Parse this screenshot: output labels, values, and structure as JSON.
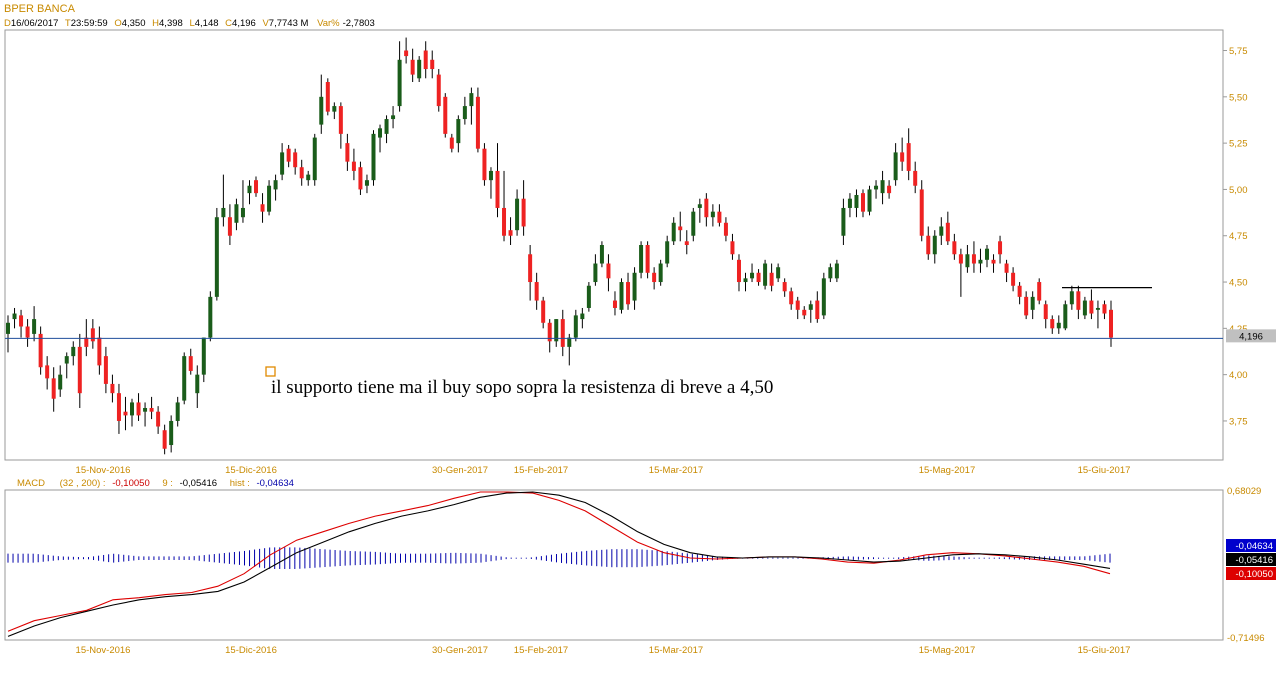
{
  "title": "BPER BANCA",
  "header": {
    "d_key": "D",
    "d_val": "16/06/2017",
    "t_key": "T",
    "t_val": "23:59:59",
    "o_key": "O",
    "o_val": "4,350",
    "h_key": "H",
    "h_val": "4,398",
    "l_key": "L",
    "l_val": "4,148",
    "c_key": "C",
    "c_val": "4,196",
    "v_key": "V",
    "v_val": "7,7743 M",
    "var_key": "Var%",
    "var_val": "-2,7803"
  },
  "annotation": "il supporto tiene ma il buy sopo sopra la resistenza di breve a 4,50",
  "price_axis_ticks": [
    "5,75",
    "5,50",
    "5,25",
    "5,00",
    "4,75",
    "4,50",
    "4,25",
    "4,00",
    "3,75"
  ],
  "last_price_label": "4,196",
  "support_level": 4.196,
  "resistance_level": 4.47,
  "macd_legend": {
    "name": "MACD",
    "params": "(32 , 200) :",
    "macd_val": "-0,10050",
    "signal_label": "9 :",
    "signal_val": "-0,05416",
    "hist_label": "hist :",
    "hist_val": "-0,04634"
  },
  "macd_axis": {
    "top": "0,68029",
    "bottom": "-0,71496"
  },
  "macd_badges": [
    {
      "text": "-0,04634",
      "bg": "#0000cc",
      "fg": "#ffffff"
    },
    {
      "text": "-0,05416",
      "bg": "#000000",
      "fg": "#ffffff"
    },
    {
      "text": "-0,10050",
      "bg": "#dd0000",
      "fg": "#ffffff"
    }
  ],
  "date_labels": [
    "15-Nov-2016",
    "15-Dic-2016",
    "30-Gen-2017",
    "15-Feb-2017",
    "15-Mar-2017",
    "15-Mag-2017",
    "15-Giu-2017"
  ],
  "colors": {
    "up": "#1a5c1a",
    "down": "#ee2222",
    "macd": "#dd0000",
    "signal": "#000000",
    "hist": "#0000aa",
    "axis_text": "#c88a00",
    "support": "#1f4e9c"
  },
  "chart_data": [
    {
      "type": "candlestick",
      "title": "BPER BANCA",
      "ylim": [
        3.55,
        5.85
      ],
      "candles": [
        [
          4.22,
          4.32,
          4.12,
          4.28
        ],
        [
          4.3,
          4.36,
          4.25,
          4.33
        ],
        [
          4.32,
          4.35,
          4.2,
          4.26
        ],
        [
          4.26,
          4.3,
          4.15,
          4.2
        ],
        [
          4.22,
          4.37,
          4.18,
          4.3
        ],
        [
          4.22,
          4.26,
          4.0,
          4.04
        ],
        [
          4.05,
          4.1,
          3.92,
          3.98
        ],
        [
          3.98,
          4.04,
          3.8,
          3.87
        ],
        [
          3.92,
          4.05,
          3.88,
          4.0
        ],
        [
          4.06,
          4.12,
          3.98,
          4.1
        ],
        [
          4.1,
          4.18,
          4.05,
          4.15
        ],
        [
          4.15,
          4.22,
          3.82,
          3.9
        ],
        [
          4.2,
          4.3,
          4.1,
          4.15
        ],
        [
          4.25,
          4.3,
          4.14,
          4.18
        ],
        [
          4.2,
          4.26,
          4.0,
          4.05
        ],
        [
          4.1,
          4.15,
          3.9,
          3.95
        ],
        [
          3.95,
          4.0,
          3.85,
          3.9
        ],
        [
          3.9,
          3.95,
          3.68,
          3.75
        ],
        [
          3.8,
          3.88,
          3.7,
          3.78
        ],
        [
          3.78,
          3.87,
          3.72,
          3.85
        ],
        [
          3.85,
          3.9,
          3.75,
          3.78
        ],
        [
          3.8,
          3.85,
          3.72,
          3.82
        ],
        [
          3.82,
          3.88,
          3.76,
          3.8
        ],
        [
          3.8,
          3.83,
          3.68,
          3.72
        ],
        [
          3.7,
          3.73,
          3.57,
          3.6
        ],
        [
          3.62,
          3.78,
          3.58,
          3.75
        ],
        [
          3.75,
          3.88,
          3.72,
          3.85
        ],
        [
          3.86,
          4.12,
          3.84,
          4.1
        ],
        [
          4.1,
          4.14,
          4.0,
          4.02
        ],
        [
          3.9,
          4.05,
          3.82,
          4.0
        ],
        [
          4.0,
          4.2,
          3.96,
          4.2
        ],
        [
          4.2,
          4.45,
          4.18,
          4.42
        ],
        [
          4.42,
          4.9,
          4.4,
          4.85
        ],
        [
          4.85,
          5.08,
          4.8,
          4.9
        ],
        [
          4.85,
          4.92,
          4.7,
          4.75
        ],
        [
          4.82,
          4.95,
          4.78,
          4.92
        ],
        [
          4.85,
          5.05,
          4.82,
          4.9
        ],
        [
          4.98,
          5.05,
          4.92,
          5.02
        ],
        [
          5.05,
          5.07,
          4.96,
          4.98
        ],
        [
          4.92,
          4.98,
          4.82,
          4.88
        ],
        [
          4.88,
          5.05,
          4.86,
          5.02
        ],
        [
          5.0,
          5.08,
          4.94,
          5.05
        ],
        [
          5.08,
          5.25,
          5.05,
          5.2
        ],
        [
          5.22,
          5.24,
          5.12,
          5.15
        ],
        [
          5.2,
          5.22,
          5.08,
          5.12
        ],
        [
          5.12,
          5.16,
          5.02,
          5.06
        ],
        [
          5.05,
          5.1,
          5.02,
          5.08
        ],
        [
          5.05,
          5.3,
          5.02,
          5.28
        ],
        [
          5.35,
          5.62,
          5.3,
          5.5
        ],
        [
          5.58,
          5.6,
          5.4,
          5.42
        ],
        [
          5.42,
          5.47,
          5.38,
          5.45
        ],
        [
          5.45,
          5.47,
          5.22,
          5.3
        ],
        [
          5.25,
          5.3,
          5.1,
          5.15
        ],
        [
          5.15,
          5.22,
          5.05,
          5.1
        ],
        [
          5.12,
          5.15,
          4.97,
          5.0
        ],
        [
          5.02,
          5.08,
          4.98,
          5.05
        ],
        [
          5.05,
          5.32,
          5.02,
          5.3
        ],
        [
          5.28,
          5.35,
          5.2,
          5.33
        ],
        [
          5.3,
          5.4,
          5.25,
          5.38
        ],
        [
          5.38,
          5.45,
          5.33,
          5.4
        ],
        [
          5.45,
          5.8,
          5.42,
          5.7
        ],
        [
          5.75,
          5.82,
          5.68,
          5.72
        ],
        [
          5.7,
          5.76,
          5.58,
          5.62
        ],
        [
          5.6,
          5.72,
          5.58,
          5.7
        ],
        [
          5.75,
          5.8,
          5.6,
          5.65
        ],
        [
          5.7,
          5.75,
          5.6,
          5.65
        ],
        [
          5.62,
          5.65,
          5.42,
          5.45
        ],
        [
          5.5,
          5.52,
          5.28,
          5.3
        ],
        [
          5.28,
          5.3,
          5.2,
          5.22
        ],
        [
          5.25,
          5.4,
          5.2,
          5.38
        ],
        [
          5.38,
          5.5,
          5.35,
          5.45
        ],
        [
          5.45,
          5.55,
          5.35,
          5.52
        ],
        [
          5.5,
          5.55,
          5.2,
          5.22
        ],
        [
          5.22,
          5.25,
          5.02,
          5.05
        ],
        [
          5.05,
          5.12,
          4.95,
          5.1
        ],
        [
          5.1,
          5.25,
          4.85,
          4.9
        ],
        [
          4.9,
          5.1,
          4.72,
          4.75
        ],
        [
          4.78,
          4.85,
          4.7,
          4.75
        ],
        [
          4.78,
          5.0,
          4.75,
          4.95
        ],
        [
          4.95,
          5.05,
          4.75,
          4.8
        ],
        [
          4.65,
          4.7,
          4.4,
          4.5
        ],
        [
          4.5,
          4.55,
          4.35,
          4.4
        ],
        [
          4.4,
          4.42,
          4.25,
          4.28
        ],
        [
          4.28,
          4.3,
          4.12,
          4.18
        ],
        [
          4.18,
          4.3,
          4.15,
          4.3
        ],
        [
          4.3,
          4.35,
          4.1,
          4.15
        ],
        [
          4.15,
          4.22,
          4.05,
          4.2
        ],
        [
          4.2,
          4.35,
          4.18,
          4.32
        ],
        [
          4.3,
          4.36,
          4.25,
          4.33
        ],
        [
          4.36,
          4.5,
          4.34,
          4.48
        ],
        [
          4.5,
          4.65,
          4.48,
          4.6
        ],
        [
          4.6,
          4.72,
          4.58,
          4.7
        ],
        [
          4.6,
          4.65,
          4.45,
          4.52
        ],
        [
          4.4,
          4.45,
          4.32,
          4.36
        ],
        [
          4.35,
          4.52,
          4.33,
          4.5
        ],
        [
          4.5,
          4.55,
          4.35,
          4.38
        ],
        [
          4.4,
          4.58,
          4.35,
          4.55
        ],
        [
          4.55,
          4.72,
          4.52,
          4.7
        ],
        [
          4.7,
          4.72,
          4.52,
          4.55
        ],
        [
          4.55,
          4.58,
          4.46,
          4.5
        ],
        [
          4.5,
          4.62,
          4.48,
          4.6
        ],
        [
          4.6,
          4.75,
          4.58,
          4.72
        ],
        [
          4.72,
          4.85,
          4.7,
          4.82
        ],
        [
          4.8,
          4.88,
          4.72,
          4.78
        ],
        [
          4.72,
          4.78,
          4.65,
          4.7
        ],
        [
          4.75,
          4.9,
          4.72,
          4.88
        ],
        [
          4.9,
          4.95,
          4.82,
          4.92
        ],
        [
          4.95,
          4.98,
          4.8,
          4.85
        ],
        [
          4.85,
          4.92,
          4.8,
          4.88
        ],
        [
          4.88,
          4.92,
          4.8,
          4.82
        ],
        [
          4.82,
          4.85,
          4.72,
          4.75
        ],
        [
          4.72,
          4.76,
          4.62,
          4.65
        ],
        [
          4.62,
          4.65,
          4.45,
          4.5
        ],
        [
          4.5,
          4.55,
          4.45,
          4.52
        ],
        [
          4.52,
          4.6,
          4.5,
          4.55
        ],
        [
          4.55,
          4.57,
          4.48,
          4.5
        ],
        [
          4.48,
          4.62,
          4.46,
          4.6
        ],
        [
          4.55,
          4.6,
          4.45,
          4.48
        ],
        [
          4.52,
          4.6,
          4.5,
          4.58
        ],
        [
          4.5,
          4.52,
          4.42,
          4.45
        ],
        [
          4.45,
          4.47,
          4.35,
          4.38
        ],
        [
          4.4,
          4.42,
          4.3,
          4.35
        ],
        [
          4.35,
          4.37,
          4.3,
          4.32
        ],
        [
          4.35,
          4.4,
          4.28,
          4.38
        ],
        [
          4.4,
          4.45,
          4.28,
          4.3
        ],
        [
          4.32,
          4.55,
          4.3,
          4.52
        ],
        [
          4.52,
          4.6,
          4.5,
          4.58
        ],
        [
          4.52,
          4.62,
          4.5,
          4.6
        ],
        [
          4.75,
          4.95,
          4.7,
          4.9
        ],
        [
          4.9,
          4.98,
          4.85,
          4.95
        ],
        [
          4.9,
          5.0,
          4.85,
          4.97
        ],
        [
          4.98,
          5.0,
          4.85,
          4.88
        ],
        [
          4.88,
          5.02,
          4.86,
          5.0
        ],
        [
          5.0,
          5.05,
          4.95,
          5.02
        ],
        [
          4.98,
          5.1,
          4.92,
          5.05
        ],
        [
          5.02,
          5.05,
          4.95,
          4.98
        ],
        [
          5.05,
          5.25,
          5.02,
          5.2
        ],
        [
          5.2,
          5.28,
          5.1,
          5.15
        ],
        [
          5.25,
          5.33,
          5.05,
          5.1
        ],
        [
          5.1,
          5.15,
          4.98,
          5.02
        ],
        [
          5.0,
          5.05,
          4.72,
          4.75
        ],
        [
          4.75,
          4.8,
          4.62,
          4.65
        ],
        [
          4.65,
          4.78,
          4.6,
          4.75
        ],
        [
          4.75,
          4.85,
          4.7,
          4.8
        ],
        [
          4.82,
          4.88,
          4.7,
          4.72
        ],
        [
          4.72,
          4.76,
          4.62,
          4.65
        ],
        [
          4.65,
          4.68,
          4.42,
          4.6
        ],
        [
          4.58,
          4.7,
          4.55,
          4.65
        ],
        [
          4.65,
          4.72,
          4.55,
          4.6
        ],
        [
          4.6,
          4.68,
          4.55,
          4.62
        ],
        [
          4.62,
          4.7,
          4.58,
          4.68
        ],
        [
          4.62,
          4.65,
          4.55,
          4.6
        ],
        [
          4.72,
          4.75,
          4.6,
          4.65
        ],
        [
          4.6,
          4.62,
          4.5,
          4.55
        ],
        [
          4.55,
          4.58,
          4.45,
          4.48
        ],
        [
          4.48,
          4.5,
          4.38,
          4.42
        ],
        [
          4.42,
          4.45,
          4.3,
          4.32
        ],
        [
          4.35,
          4.45,
          4.3,
          4.42
        ],
        [
          4.5,
          4.52,
          4.38,
          4.4
        ],
        [
          4.38,
          4.4,
          4.25,
          4.3
        ],
        [
          4.3,
          4.32,
          4.22,
          4.25
        ],
        [
          4.25,
          4.32,
          4.22,
          4.28
        ],
        [
          4.25,
          4.4,
          4.24,
          4.38
        ],
        [
          4.38,
          4.48,
          4.35,
          4.45
        ],
        [
          4.45,
          4.48,
          4.3,
          4.35
        ],
        [
          4.32,
          4.42,
          4.3,
          4.4
        ],
        [
          4.4,
          4.46,
          4.3,
          4.33
        ],
        [
          4.35,
          4.4,
          4.25,
          4.36
        ],
        [
          4.38,
          4.4,
          4.3,
          4.33
        ],
        [
          4.35,
          4.4,
          4.15,
          4.2
        ]
      ]
    },
    {
      "type": "line",
      "title": "MACD",
      "ylim": [
        -0.71496,
        0.68029
      ],
      "series": [
        {
          "name": "MACD",
          "values": [
            -0.65,
            -0.55,
            -0.5,
            -0.45,
            -0.35,
            -0.33,
            -0.3,
            -0.28,
            -0.22,
            -0.1,
            0.08,
            0.22,
            0.3,
            0.38,
            0.45,
            0.5,
            0.55,
            0.62,
            0.68,
            0.68,
            0.67,
            0.6,
            0.5,
            0.35,
            0.2,
            0.1,
            0.05,
            0.04,
            0.05,
            0.06,
            0.06,
            0.04,
            0.01,
            0.0,
            0.03,
            0.08,
            0.1,
            0.09,
            0.07,
            0.04,
            0.01,
            -0.03,
            -0.1
          ]
        },
        {
          "name": "9",
          "values": [
            -0.7,
            -0.6,
            -0.52,
            -0.46,
            -0.4,
            -0.35,
            -0.32,
            -0.3,
            -0.27,
            -0.18,
            -0.04,
            0.1,
            0.2,
            0.3,
            0.38,
            0.45,
            0.5,
            0.56,
            0.63,
            0.67,
            0.68,
            0.65,
            0.58,
            0.45,
            0.3,
            0.18,
            0.1,
            0.06,
            0.05,
            0.06,
            0.06,
            0.05,
            0.03,
            0.01,
            0.02,
            0.05,
            0.08,
            0.09,
            0.08,
            0.06,
            0.03,
            -0.01,
            -0.05
          ]
        }
      ]
    }
  ]
}
